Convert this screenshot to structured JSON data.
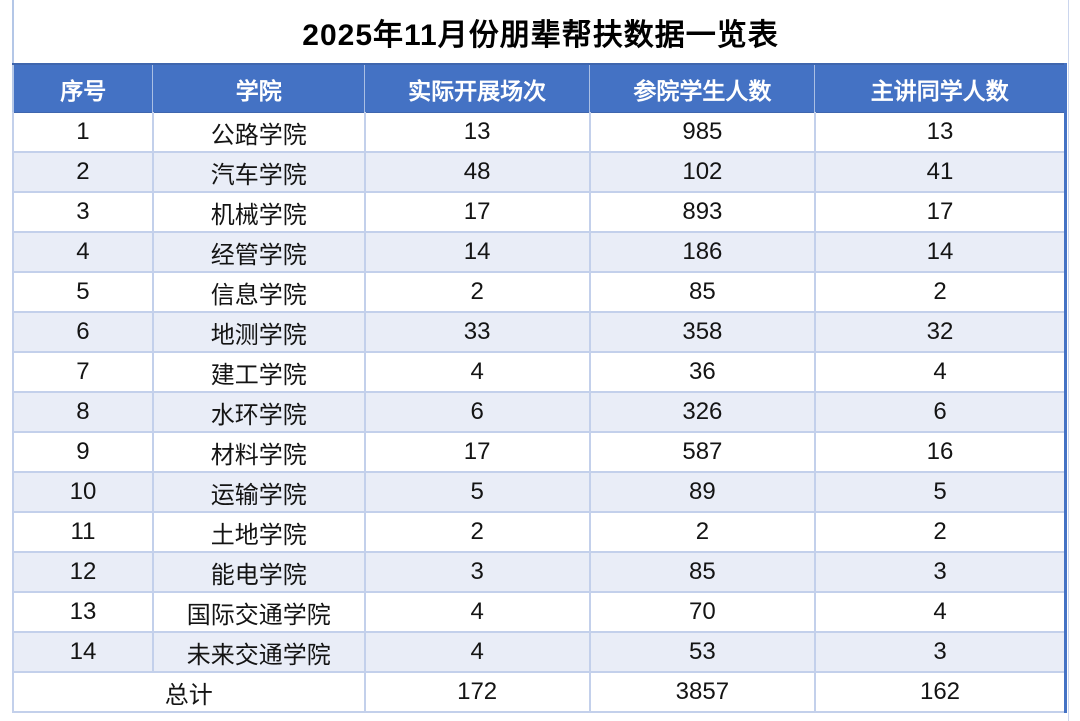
{
  "title": "2025年11月份朋辈帮扶数据一览表",
  "table": {
    "headers": [
      "序号",
      "学院",
      "实际开展场次",
      "参院学生人数",
      "主讲同学人数"
    ],
    "rows": [
      [
        "1",
        "公路学院",
        "13",
        "985",
        "13"
      ],
      [
        "2",
        "汽车学院",
        "48",
        "102",
        "41"
      ],
      [
        "3",
        "机械学院",
        "17",
        "893",
        "17"
      ],
      [
        "4",
        "经管学院",
        "14",
        "186",
        "14"
      ],
      [
        "5",
        "信息学院",
        "2",
        "85",
        "2"
      ],
      [
        "6",
        "地测学院",
        "33",
        "358",
        "32"
      ],
      [
        "7",
        "建工学院",
        "4",
        "36",
        "4"
      ],
      [
        "8",
        "水环学院",
        "6",
        "326",
        "6"
      ],
      [
        "9",
        "材料学院",
        "17",
        "587",
        "16"
      ],
      [
        "10",
        "运输学院",
        "5",
        "89",
        "5"
      ],
      [
        "11",
        "土地学院",
        "2",
        "2",
        "2"
      ],
      [
        "12",
        "能电学院",
        "3",
        "85",
        "3"
      ],
      [
        "13",
        "国际交通学院",
        "4",
        "70",
        "4"
      ],
      [
        "14",
        "未来交通学院",
        "4",
        "53",
        "3"
      ]
    ],
    "total": {
      "label": "总计",
      "sessions": "172",
      "participants": "3857",
      "speakers": "162"
    }
  },
  "colors": {
    "header_bg": "#4472C4",
    "header_text": "#FFFFFF",
    "alt_row_bg": "#E9EDF7",
    "grid_line": "#B4C7E7",
    "outer_right_border": "#4472C4",
    "body_text": "#141414"
  },
  "chart_data": {
    "type": "table",
    "title": "2025年11月份朋辈帮扶数据一览表",
    "columns": [
      "序号",
      "学院",
      "实际开展场次",
      "参院学生人数",
      "主讲同学人数"
    ],
    "rows": [
      [
        1,
        "公路学院",
        13,
        985,
        13
      ],
      [
        2,
        "汽车学院",
        48,
        102,
        41
      ],
      [
        3,
        "机械学院",
        17,
        893,
        17
      ],
      [
        4,
        "经管学院",
        14,
        186,
        14
      ],
      [
        5,
        "信息学院",
        2,
        85,
        2
      ],
      [
        6,
        "地测学院",
        33,
        358,
        32
      ],
      [
        7,
        "建工学院",
        4,
        36,
        4
      ],
      [
        8,
        "水环学院",
        6,
        326,
        6
      ],
      [
        9,
        "材料学院",
        17,
        587,
        16
      ],
      [
        10,
        "运输学院",
        5,
        89,
        5
      ],
      [
        11,
        "土地学院",
        2,
        2,
        2
      ],
      [
        12,
        "能电学院",
        3,
        85,
        3
      ],
      [
        13,
        "国际交通学院",
        4,
        70,
        4
      ],
      [
        14,
        "未来交通学院",
        4,
        53,
        3
      ]
    ],
    "total_row": [
      "总计",
      172,
      3857,
      162
    ]
  }
}
